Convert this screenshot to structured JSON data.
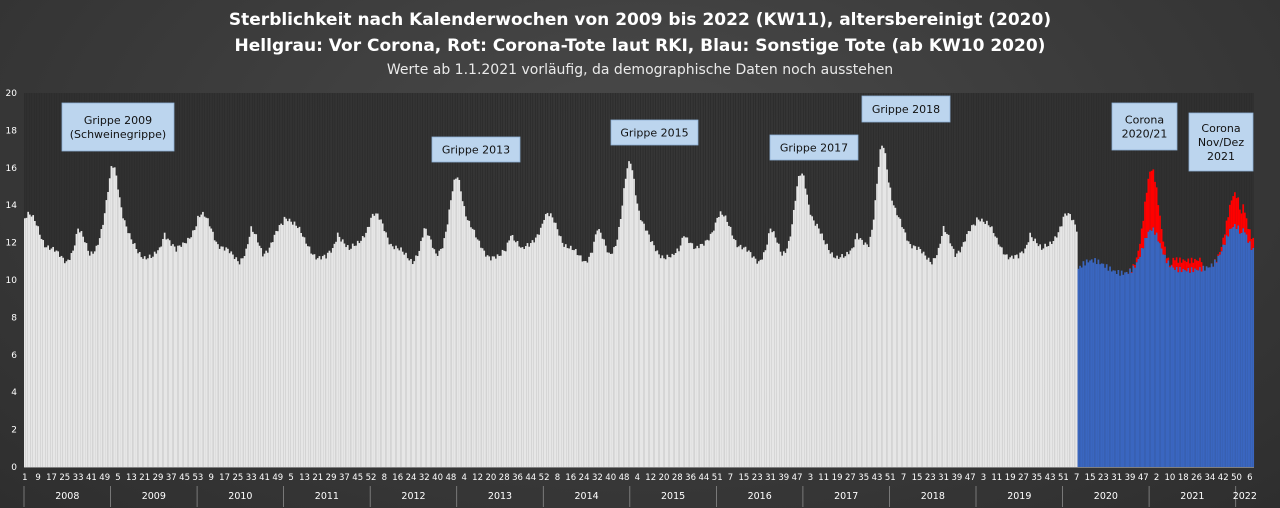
{
  "title": "Sterblichkeit nach Kalenderwochen von 2009 bis 2022 (KW11), altersbereinigt (2020)",
  "subtitle": "Hellgrau: Vor Corona, Rot: Corona-Tote laut RKI, Blau: Sonstige Tote (ab KW10 2020)",
  "note": "Werte ab 1.1.2021 vorläufig, da demographische Daten noch ausstehen",
  "colors": {
    "background": "#3c3c3c",
    "pre_corona": "#e6e6e6",
    "corona_rki": "#ff0000",
    "other_deaths": "#3a66c0",
    "annotation_box": "#bcd5ee",
    "text": "#ffffff"
  },
  "chart_data": {
    "type": "bar",
    "title": "Sterblichkeit nach Kalenderwochen von 2009 bis 2022 (KW11), altersbereinigt (2020)",
    "ylim": [
      0,
      20
    ],
    "yticks": [
      0,
      2,
      4,
      6,
      8,
      10,
      12,
      14,
      16,
      18,
      20
    ],
    "grid": false,
    "x_tick_labels": [
      "1",
      "9",
      "17",
      "25",
      "33",
      "41",
      "49",
      "5",
      "13",
      "21",
      "29",
      "37",
      "45",
      "53",
      "9",
      "17",
      "25",
      "33",
      "41",
      "49",
      "5",
      "13",
      "21",
      "29",
      "37",
      "45",
      "52",
      "8",
      "16",
      "24",
      "32",
      "40",
      "48",
      "4",
      "12",
      "20",
      "28",
      "36",
      "44",
      "52",
      "8",
      "16",
      "24",
      "32",
      "40",
      "48",
      "4",
      "12",
      "20",
      "28",
      "36",
      "44",
      "51",
      "7",
      "15",
      "23",
      "31",
      "39",
      "47",
      "3",
      "11",
      "19",
      "27",
      "35",
      "43",
      "51",
      "7",
      "15",
      "23",
      "31",
      "39",
      "47",
      "3",
      "11",
      "19",
      "27",
      "35",
      "43",
      "51",
      "7",
      "15",
      "23",
      "31",
      "39",
      "47",
      "2",
      "10",
      "18",
      "26",
      "34",
      "42",
      "50",
      "6"
    ],
    "years": [
      "2008",
      "2009",
      "2010",
      "2011",
      "2012",
      "2013",
      "2014",
      "2015",
      "2016",
      "2017",
      "2018",
      "2019",
      "2020",
      "2021",
      "2022"
    ],
    "series": [
      {
        "name": "Hellgrau: Vor Corona",
        "weeks": 633
      },
      {
        "name": "Blau: Sonstige Tote (ab KW10 2020)",
        "weeks": 106
      },
      {
        "name": "Rot: Corona-Tote laut RKI",
        "weeks": 106
      }
    ],
    "yearly_profile": {
      "weeks": [
        1,
        3,
        5,
        7,
        9,
        11,
        13,
        17,
        21,
        26,
        30,
        33,
        36,
        40,
        44,
        48,
        52
      ],
      "values": [
        13.3,
        13.4,
        13.3,
        13.1,
        12.8,
        12.4,
        12.0,
        11.6,
        11.3,
        11.1,
        11.6,
        12.6,
        12.2,
        11.5,
        11.8,
        12.4,
        13.0
      ]
    },
    "flu_peaks": [
      {
        "label": "Grippe 2009 (Schweinegrippe)",
        "center_week": 53,
        "value": 16.2
      },
      {
        "label": "Grippe 2013",
        "center_week": 259,
        "value": 15.4
      },
      {
        "label": "Grippe 2015",
        "center_week": 363,
        "value": 16.2
      },
      {
        "label": "Grippe 2017",
        "center_week": 466,
        "value": 15.6
      },
      {
        "label": "Grippe 2018",
        "center_week": 515,
        "value": 17.4
      }
    ],
    "corona_waves": [
      {
        "label": "Corona 2020/21",
        "total_peak": 16.0,
        "other_peak": 12.8
      },
      {
        "label": "Corona Nov/Dez 2021",
        "total_peak": 14.8,
        "other_peak": 13.1
      }
    ]
  },
  "annotations": [
    {
      "id": "grippe2009",
      "lines": [
        "Grippe 2009",
        "(Schweinegrippe)"
      ]
    },
    {
      "id": "grippe2013",
      "lines": [
        "Grippe 2013"
      ]
    },
    {
      "id": "grippe2015",
      "lines": [
        "Grippe 2015"
      ]
    },
    {
      "id": "grippe2017",
      "lines": [
        "Grippe 2017"
      ]
    },
    {
      "id": "grippe2018",
      "lines": [
        "Grippe 2018"
      ]
    },
    {
      "id": "corona2020",
      "lines": [
        "Corona",
        "2020/21"
      ]
    },
    {
      "id": "corona2021",
      "lines": [
        "Corona",
        "Nov/Dez",
        "2021"
      ]
    }
  ]
}
